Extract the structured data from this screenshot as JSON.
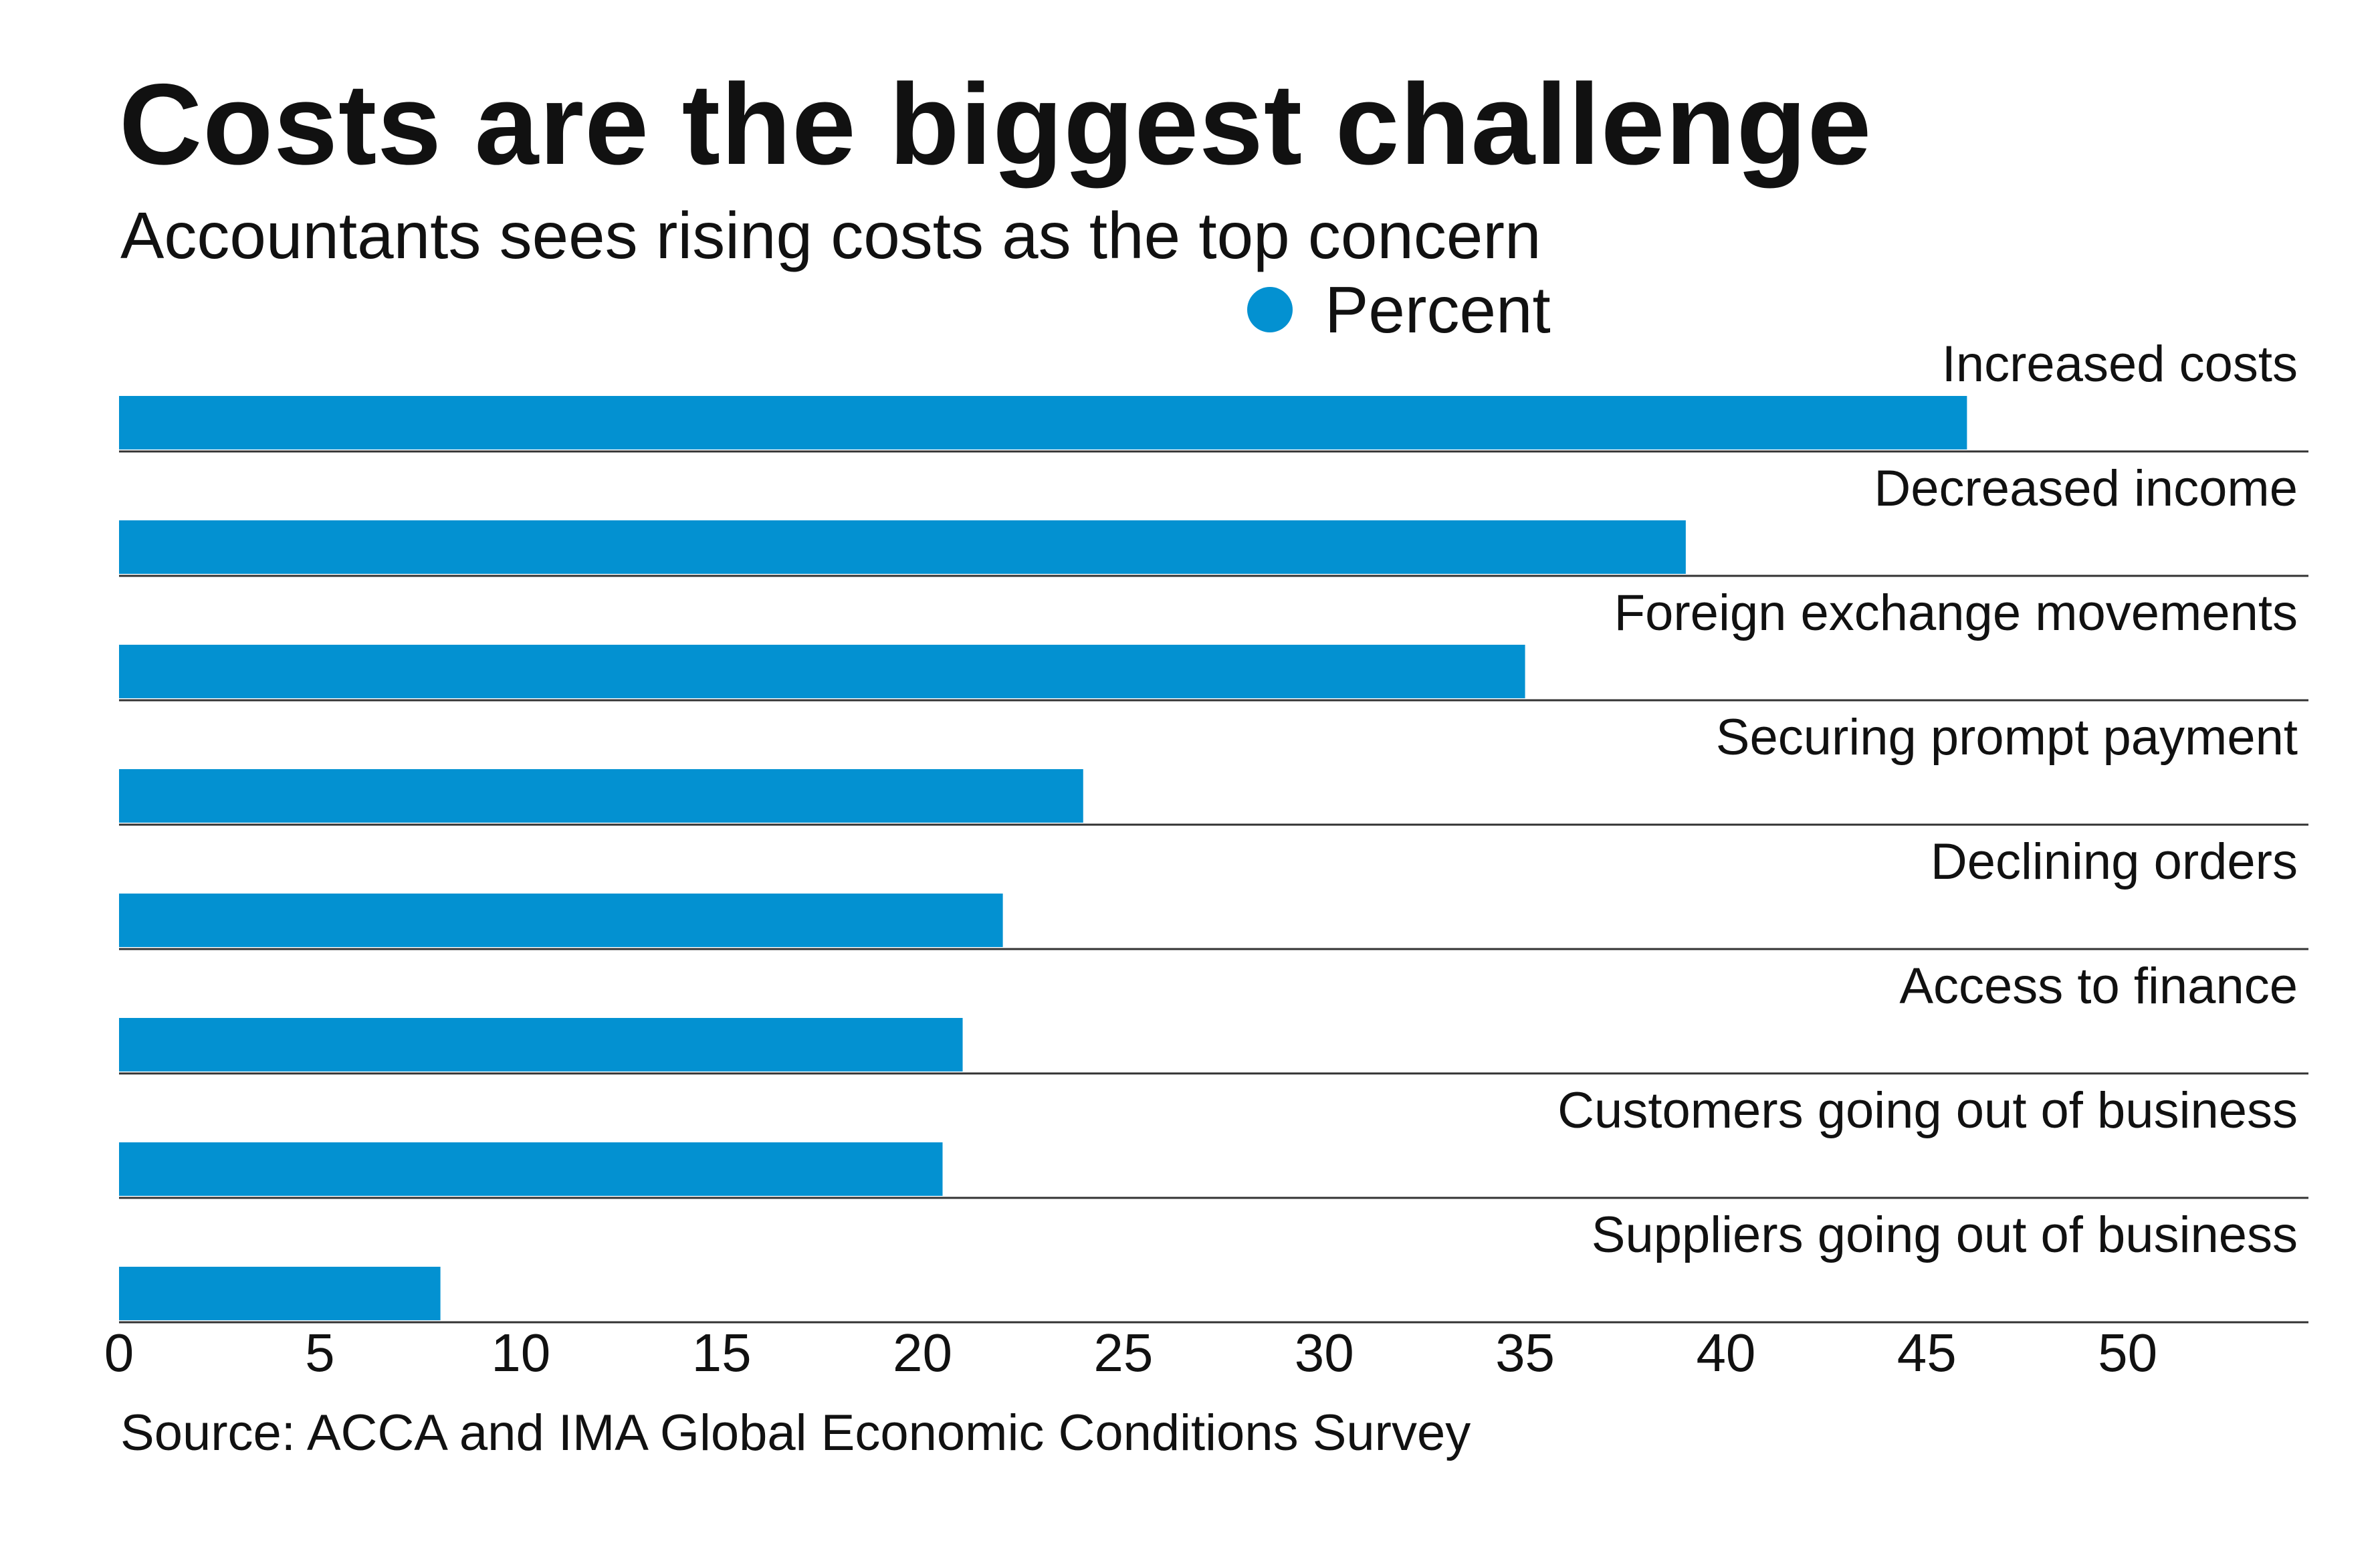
{
  "title": "Costs are the biggest challenge",
  "subtitle": "Accountants sees rising costs as the top concern",
  "legend": {
    "label": "Percent",
    "color": "#0391d1"
  },
  "source": "Source: ACCA and IMA Global Economic Conditions Survey",
  "chart_data": {
    "type": "bar",
    "orientation": "horizontal",
    "categories": [
      "Increased costs",
      "Decreased income",
      "Foreign exchange movements",
      "Securing prompt payment",
      "Declining orders",
      "Access to finance",
      "Customers going out of business",
      "Suppliers going out of business"
    ],
    "series": [
      {
        "name": "Percent",
        "values": [
          46,
          39,
          35,
          24,
          22,
          21,
          20.5,
          8
        ]
      }
    ],
    "xlim": [
      0,
      54.5
    ],
    "xticks": [
      0,
      5,
      10,
      15,
      20,
      25,
      30,
      35,
      40,
      45,
      50
    ],
    "grid": false,
    "legend_position": "top-center",
    "bar_color": "#0391d1",
    "divider_color": "#333333"
  }
}
